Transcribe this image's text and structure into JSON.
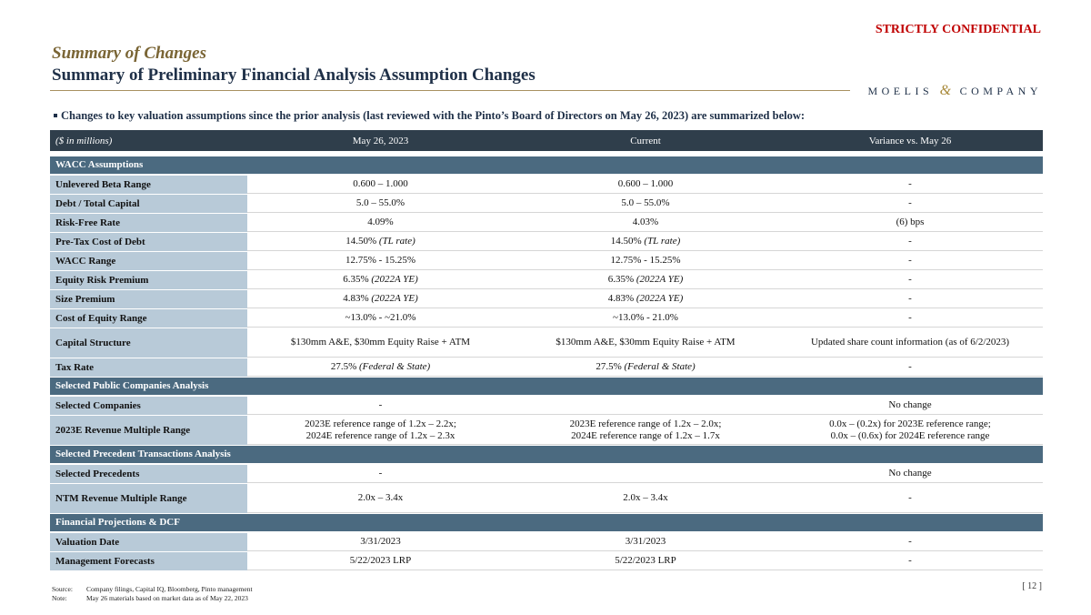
{
  "header": {
    "confidential": "STRICTLY CONFIDENTIAL",
    "section": "Summary of Changes",
    "title": "Summary of Preliminary Financial Analysis Assumption Changes",
    "logo": {
      "left": "MOELIS",
      "amp": "&",
      "right": "COMPANY"
    }
  },
  "bullet": "Changes to key valuation assumptions since the prior analysis (last reviewed with the Pinto’s Board of Directors on May 26, 2023) are summarized below:",
  "table": {
    "columns": [
      "($ in millions)",
      "May 26, 2023",
      "Current",
      "Variance vs. May 26"
    ],
    "sections": [
      {
        "title": "WACC Assumptions",
        "rows": [
          [
            "Unlevered Beta Range",
            "0.600 – 1.000",
            "0.600 – 1.000",
            "-"
          ],
          [
            "Debt / Total Capital",
            "5.0 – 55.0%",
            "5.0 – 55.0%",
            "-"
          ],
          [
            "Risk-Free Rate",
            "4.09%",
            "4.03%",
            "(6) bps"
          ],
          [
            "Pre-Tax Cost of Debt",
            {
              "text": "14.50%",
              "note": "(TL rate)"
            },
            {
              "text": "14.50%",
              "note": "(TL rate)"
            },
            "-"
          ],
          [
            "WACC Range",
            "12.75% - 15.25%",
            "12.75% - 15.25%",
            "-"
          ],
          [
            "Equity Risk Premium",
            {
              "text": "6.35%",
              "note": "(2022A YE)"
            },
            {
              "text": "6.35%",
              "note": "(2022A YE)"
            },
            "-"
          ],
          [
            "Size Premium",
            {
              "text": "4.83%",
              "note": "(2022A YE)"
            },
            {
              "text": "4.83%",
              "note": "(2022A YE)"
            },
            "-"
          ],
          [
            "Cost of Equity Range",
            "~13.0% - ~21.0%",
            "~13.0% - 21.0%",
            "-"
          ],
          [
            "Capital Structure",
            "$130mm A&E, $30mm Equity Raise + ATM",
            "$130mm A&E, $30mm Equity Raise + ATM",
            "Updated share count information (as of 6/2/2023)"
          ],
          [
            "Tax Rate",
            {
              "text": "27.5%",
              "note": "(Federal & State)"
            },
            {
              "text": "27.5%",
              "note": "(Federal & State)"
            },
            "-"
          ]
        ]
      },
      {
        "title": "Selected Public Companies Analysis",
        "rows": [
          [
            "Selected Companies",
            "-",
            null,
            "No change"
          ],
          [
            "2023E Revenue Multiple Range",
            [
              "2023E reference range of 1.2x – 2.2x;",
              "2024E reference range of 1.2x – 2.3x"
            ],
            [
              "2023E reference range of 1.2x – 2.0x;",
              "2024E reference range of 1.2x – 1.7x"
            ],
            [
              "0.0x – (0.2x) for 2023E reference range;",
              "0.0x – (0.6x) for 2024E reference range"
            ]
          ]
        ]
      },
      {
        "title": "Selected Precedent Transactions Analysis",
        "rows": [
          [
            "Selected Precedents",
            "-",
            null,
            "No change"
          ],
          [
            "NTM Revenue Multiple Range",
            "2.0x – 3.4x",
            "2.0x – 3.4x",
            "-"
          ]
        ]
      },
      {
        "title": "Financial Projections & DCF",
        "rows": [
          [
            "Valuation Date",
            "3/31/2023",
            "3/31/2023",
            "-"
          ],
          [
            "Management Forecasts",
            "5/22/2023 LRP",
            "5/22/2023 LRP",
            "-"
          ]
        ]
      }
    ]
  },
  "footer": {
    "source_label": "Source:",
    "source": "Company filings, Capital IQ, Bloomberg, Pinto management",
    "note_label": "Note:",
    "note": "May 26 materials based on market data as of May 22, 2023",
    "page": "[ 12 ]"
  }
}
